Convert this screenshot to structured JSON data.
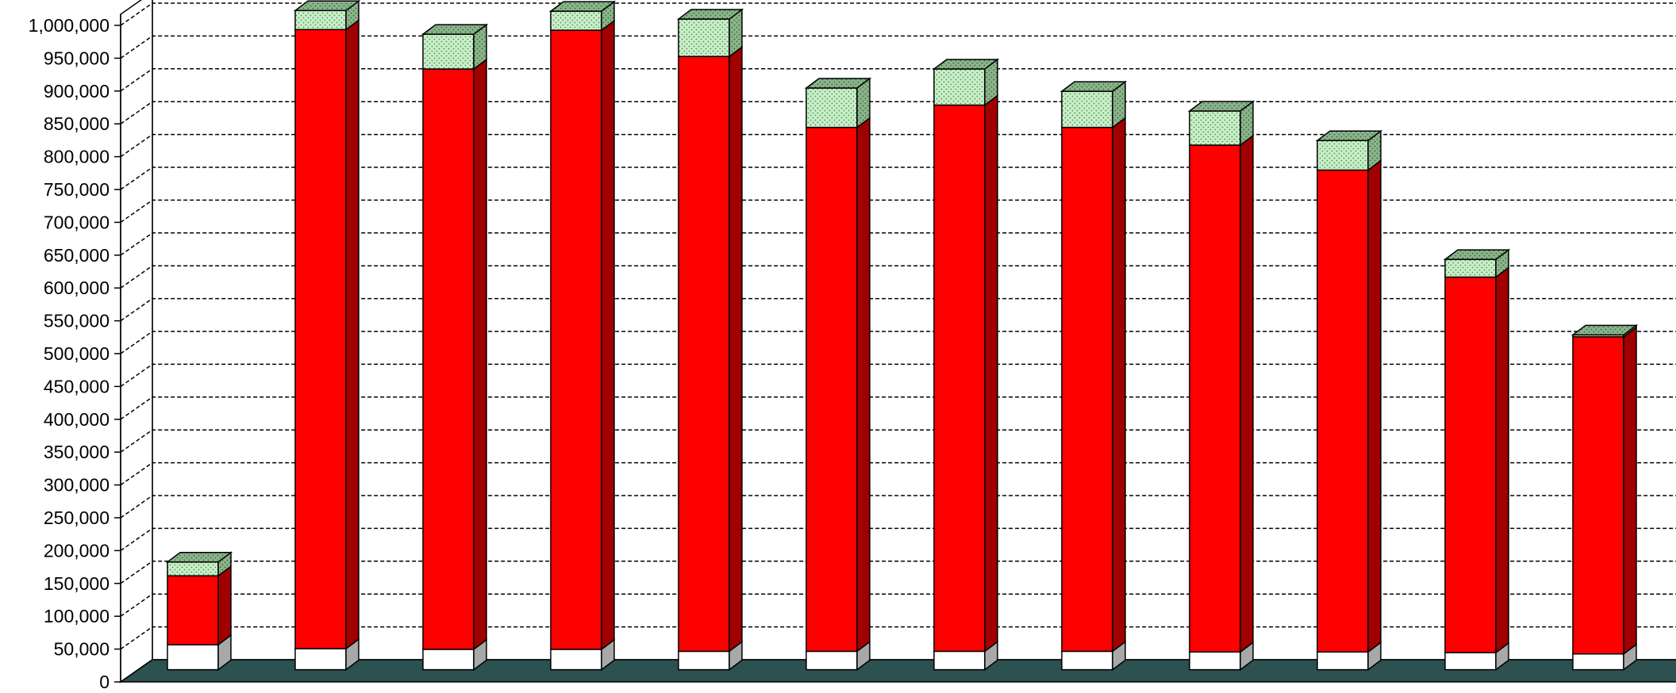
{
  "chart_data": {
    "type": "bar",
    "stacked": true,
    "three_d": true,
    "title": "",
    "xlabel": "",
    "ylabel": "",
    "ylim": [
      0,
      1000000
    ],
    "ytick_step": 50000,
    "yticks": [
      "0",
      "50,000",
      "100,000",
      "150,000",
      "200,000",
      "250,000",
      "300,000",
      "350,000",
      "400,000",
      "450,000",
      "500,000",
      "550,000",
      "600,000",
      "650,000",
      "700,000",
      "750,000",
      "800,000",
      "850,000",
      "900,000",
      "950,000",
      "1,000,000"
    ],
    "grid": true,
    "grid_style": "dashed",
    "legend": "none",
    "categories": [
      "",
      "",
      "",
      "",
      "",
      "",
      "",
      "",
      "",
      "",
      "",
      ""
    ],
    "series": [
      {
        "values": [
          38000,
          32000,
          31000,
          31000,
          28000,
          28000,
          28000,
          28000,
          27000,
          27000,
          26000,
          24000
        ],
        "color": "#ffffff"
      },
      {
        "values": [
          105000,
          943000,
          884000,
          943000,
          906000,
          798000,
          832000,
          798000,
          772000,
          734000,
          572000,
          483000
        ],
        "color": "#ff0000"
      },
      {
        "values": [
          21000,
          29000,
          53000,
          29000,
          57000,
          60000,
          55000,
          55000,
          52000,
          45000,
          27000,
          3000
        ],
        "color": "#c8f0c8",
        "pattern": "dotted"
      }
    ],
    "colors": {
      "floor": "#2d5050",
      "side_white": "#a8a8a8",
      "side_red": "#a00000",
      "side_green": "#7aa87a",
      "grid": "#000000"
    }
  }
}
